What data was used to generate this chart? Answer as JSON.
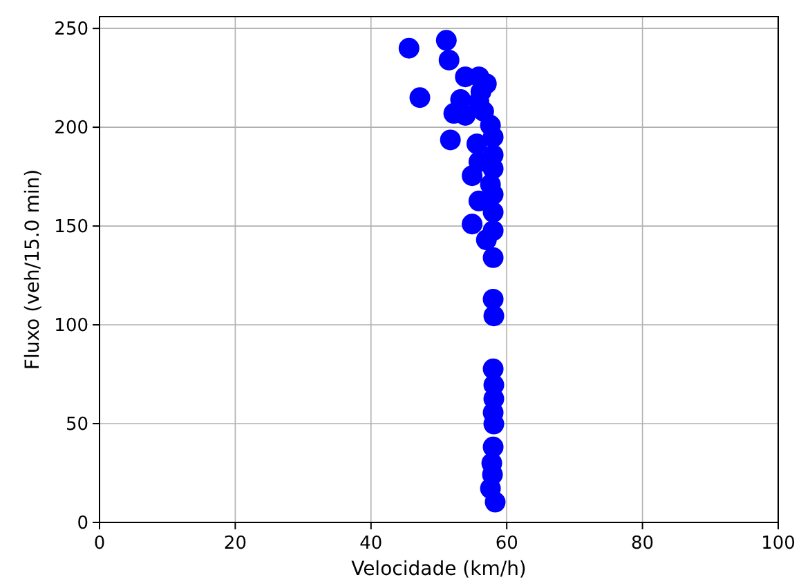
{
  "chart_data": {
    "type": "scatter",
    "xlabel": "Velocidade (km/h)",
    "ylabel": "Fluxo (veh/15.0 min)",
    "x": [
      45.6,
      51.1,
      51.5,
      47.2,
      53.9,
      55.9,
      57.0,
      56.2,
      53.2,
      55.9,
      52.2,
      53.9,
      56.6,
      57.6,
      58.0,
      51.7,
      55.6,
      58.0,
      55.9,
      58.0,
      54.9,
      57.6,
      58.0,
      55.9,
      58.0,
      54.9,
      58.0,
      57.0,
      58.0,
      58.0,
      58.1,
      58.0,
      58.1,
      58.1,
      58.0,
      58.1,
      58.0,
      57.8,
      57.9,
      57.6,
      58.3
    ],
    "series": [
      {
        "color": "#0000ff",
        "values": [
          240,
          244,
          234,
          215,
          225.5,
          225.5,
          222,
          218,
          214,
          213,
          207,
          206,
          208,
          201,
          195,
          193.6,
          191.6,
          186,
          182.5,
          179,
          175.5,
          171,
          166,
          162.7,
          157,
          151,
          147.7,
          143,
          134,
          113,
          104.5,
          77.7,
          69.6,
          62.6,
          55.6,
          49.8,
          38.2,
          30,
          24.2,
          17.2,
          10.3
        ]
      }
    ],
    "xlim": [
      0,
      100
    ],
    "ylim": [
      0,
      256
    ],
    "xticks": [
      0,
      20,
      40,
      60,
      80,
      100
    ],
    "yticks": [
      0,
      50,
      100,
      150,
      200,
      250
    ],
    "grid": true,
    "marker": "circle"
  }
}
